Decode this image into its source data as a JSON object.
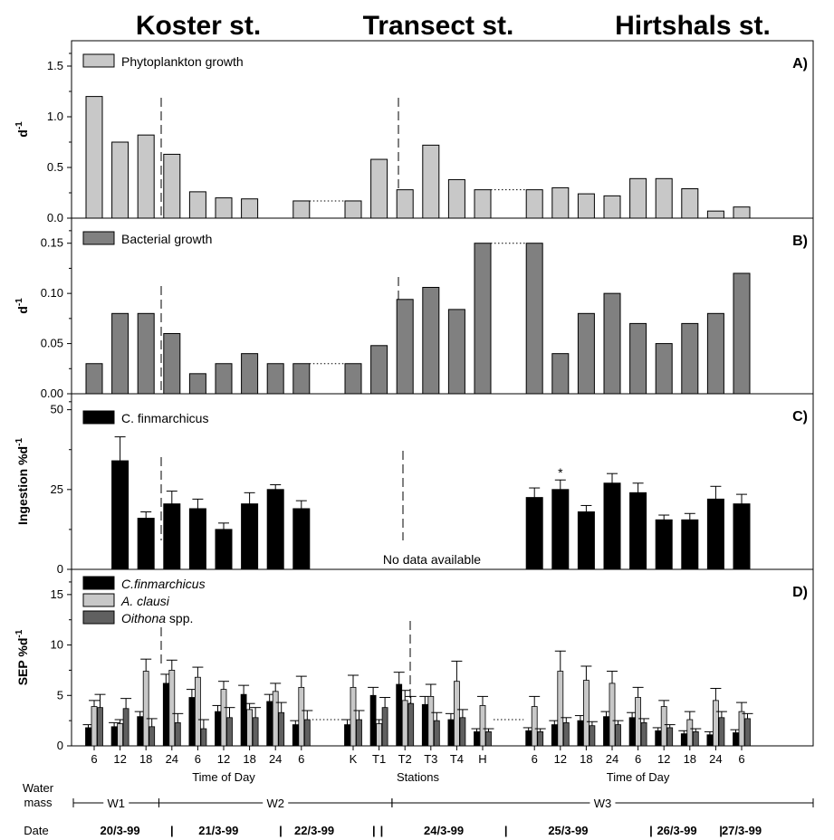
{
  "site_titles": [
    "Koster st.",
    "Transect st.",
    "Hirtshals st."
  ],
  "colors": {
    "phyto": "#c8c8c8",
    "bact": "#808080",
    "cfin": "#000000",
    "aclausi": "#c8c8c8",
    "oithona": "#606060"
  },
  "chart_data": [
    {
      "type": "bar",
      "panel_label": "A)",
      "ylabel": "d-1",
      "ylim": [
        0,
        1.75
      ],
      "yticks": [
        "0.0",
        "0.5",
        "1.0",
        "1.5"
      ],
      "legend": [
        "Phytoplankton growth"
      ],
      "values": [
        1.2,
        0.75,
        0.82,
        0.63,
        0.26,
        0.2,
        0.19,
        null,
        0.17,
        null,
        0.17,
        0.58,
        0.28,
        0.72,
        0.38,
        0.28,
        null,
        0.28,
        0.3,
        0.24,
        0.22,
        0.39,
        0.39,
        0.29,
        0.07,
        0.11
      ],
      "dotted_links": [
        [
          8,
          10
        ],
        [
          15,
          17
        ]
      ]
    },
    {
      "type": "bar",
      "panel_label": "B)",
      "ylabel": "d-1",
      "ylim": [
        0,
        0.175
      ],
      "yticks": [
        "0.00",
        "0.05",
        "0.10",
        "0.15"
      ],
      "legend": [
        "Bacterial growth"
      ],
      "values": [
        0.03,
        0.08,
        0.08,
        0.06,
        0.02,
        0.03,
        0.04,
        0.03,
        0.03,
        null,
        0.03,
        0.048,
        0.094,
        0.106,
        0.084,
        0.15,
        null,
        0.15,
        0.04,
        0.08,
        0.1,
        0.07,
        0.05,
        0.07,
        0.08,
        0.12
      ],
      "dotted_links": [
        [
          8,
          10
        ],
        [
          15,
          17
        ]
      ]
    },
    {
      "type": "bar",
      "panel_label": "C)",
      "ylabel": "Ingestion %d-1",
      "ylim": [
        0,
        55
      ],
      "yticks": [
        "0",
        "25",
        "50"
      ],
      "legend": [
        "C. finmarchicus"
      ],
      "values": [
        null,
        34,
        16,
        20.5,
        19,
        12.5,
        20.5,
        25,
        19,
        null,
        null,
        null,
        null,
        null,
        null,
        null,
        null,
        22.5,
        25,
        18,
        27,
        24,
        15.5,
        15.5,
        22,
        20.5
      ],
      "errors": [
        null,
        7.5,
        2,
        4,
        3,
        2,
        3.5,
        1.5,
        2.5,
        null,
        null,
        null,
        null,
        null,
        null,
        null,
        null,
        3,
        3,
        2,
        3,
        3,
        1.5,
        2,
        4,
        3
      ],
      "annotation": "No data available",
      "star": "*"
    },
    {
      "type": "bar",
      "panel_label": "D)",
      "ylabel": "SEP %d-1",
      "ylim": [
        0,
        17.5
      ],
      "yticks": [
        "0",
        "5",
        "10",
        "15"
      ],
      "series": [
        {
          "name": "C.finmarchicus",
          "values": [
            1.8,
            1.9,
            2.9,
            6.2,
            4.8,
            3.4,
            5.1,
            4.4,
            2.1,
            null,
            2.1,
            5.0,
            6.1,
            4.1,
            2.6,
            1.4,
            null,
            1.5,
            2.1,
            2.5,
            2.9,
            2.8,
            1.5,
            1.2,
            1.1,
            1.3
          ],
          "errors": [
            0.3,
            0.4,
            0.5,
            0.9,
            0.8,
            0.6,
            0.9,
            0.7,
            0.4,
            null,
            0.5,
            0.8,
            1.2,
            0.8,
            0.6,
            0.3,
            null,
            0.3,
            0.4,
            0.5,
            0.5,
            0.5,
            0.3,
            0.3,
            0.3,
            0.3
          ]
        },
        {
          "name": "A. clausi",
          "values": [
            3.9,
            2.2,
            7.4,
            7.5,
            6.8,
            5.6,
            3.6,
            5.4,
            5.8,
            null,
            5.8,
            2.2,
            4.5,
            4.9,
            6.4,
            4.0,
            null,
            3.9,
            7.4,
            6.5,
            6.2,
            4.8,
            3.9,
            2.6,
            4.5,
            3.4
          ],
          "errors": [
            0.6,
            0.4,
            1.2,
            1.0,
            1.0,
            0.8,
            0.6,
            0.8,
            1.1,
            null,
            1.2,
            0.4,
            1.0,
            1.2,
            2.0,
            0.9,
            null,
            1.0,
            2.0,
            1.4,
            1.2,
            1.0,
            0.6,
            0.8,
            1.2,
            0.9
          ]
        },
        {
          "name": "Oithona spp.",
          "values": [
            3.8,
            3.7,
            1.9,
            2.3,
            1.7,
            2.8,
            2.8,
            3.3,
            2.6,
            null,
            2.6,
            3.8,
            4.2,
            2.5,
            2.8,
            1.4,
            null,
            1.4,
            2.3,
            2.0,
            2.1,
            2.3,
            1.8,
            1.4,
            2.8,
            2.7
          ],
          "errors": [
            1.3,
            1.0,
            0.8,
            0.9,
            0.9,
            1.0,
            1.0,
            1.0,
            0.9,
            null,
            0.9,
            1.0,
            0.7,
            0.8,
            0.8,
            0.3,
            null,
            0.3,
            0.5,
            0.4,
            0.4,
            0.4,
            0.3,
            0.3,
            0.6,
            0.5
          ]
        }
      ],
      "dotted_links": [
        [
          8,
          10
        ],
        [
          15,
          17
        ]
      ]
    }
  ],
  "x_axis": {
    "tick_labels": [
      "6",
      "12",
      "18",
      "24",
      "6",
      "12",
      "18",
      "24",
      "6",
      "",
      "K",
      "T1",
      "T2",
      "T3",
      "T4",
      "H",
      "",
      "6",
      "12",
      "18",
      "24",
      "6",
      "12",
      "18",
      "24",
      "6"
    ],
    "group_labels": [
      {
        "text": "Time of Day",
        "center": 5
      },
      {
        "text": "Stations",
        "center": 12.5
      },
      {
        "text": "Time of Day",
        "center": 21
      }
    ]
  },
  "water_mass": {
    "label": [
      "Water",
      "mass"
    ],
    "segments": [
      {
        "text": "W1",
        "from": -0.5,
        "to": 2.5
      },
      {
        "text": "W2",
        "from": 2.5,
        "to": 11.5
      },
      {
        "text": "W3",
        "from": 11.5,
        "to": 25.5
      }
    ]
  },
  "dates": {
    "label": "Date",
    "items": [
      {
        "text": "20/3-99",
        "center": 1
      },
      {
        "text": "21/3-99",
        "center": 4.8
      },
      {
        "text": "22/3-99",
        "center": 8.5
      },
      {
        "text": "24/3-99",
        "center": 13.5
      },
      {
        "text": "25/3-99",
        "center": 18.3
      },
      {
        "text": "26/3-99",
        "center": 22.5
      },
      {
        "text": "27/3-99",
        "center": 25
      }
    ],
    "separators": [
      3,
      7.2,
      10.8,
      11.1,
      15.9,
      21.5,
      24.2
    ],
    "separator_glyph": "|"
  },
  "legend_names_italic": [
    "C.finmarchicus",
    "A. clausi",
    "Oithona"
  ],
  "legend_D": [
    "C.finmarchicus",
    "A. clausi",
    "Oithona",
    " spp."
  ]
}
